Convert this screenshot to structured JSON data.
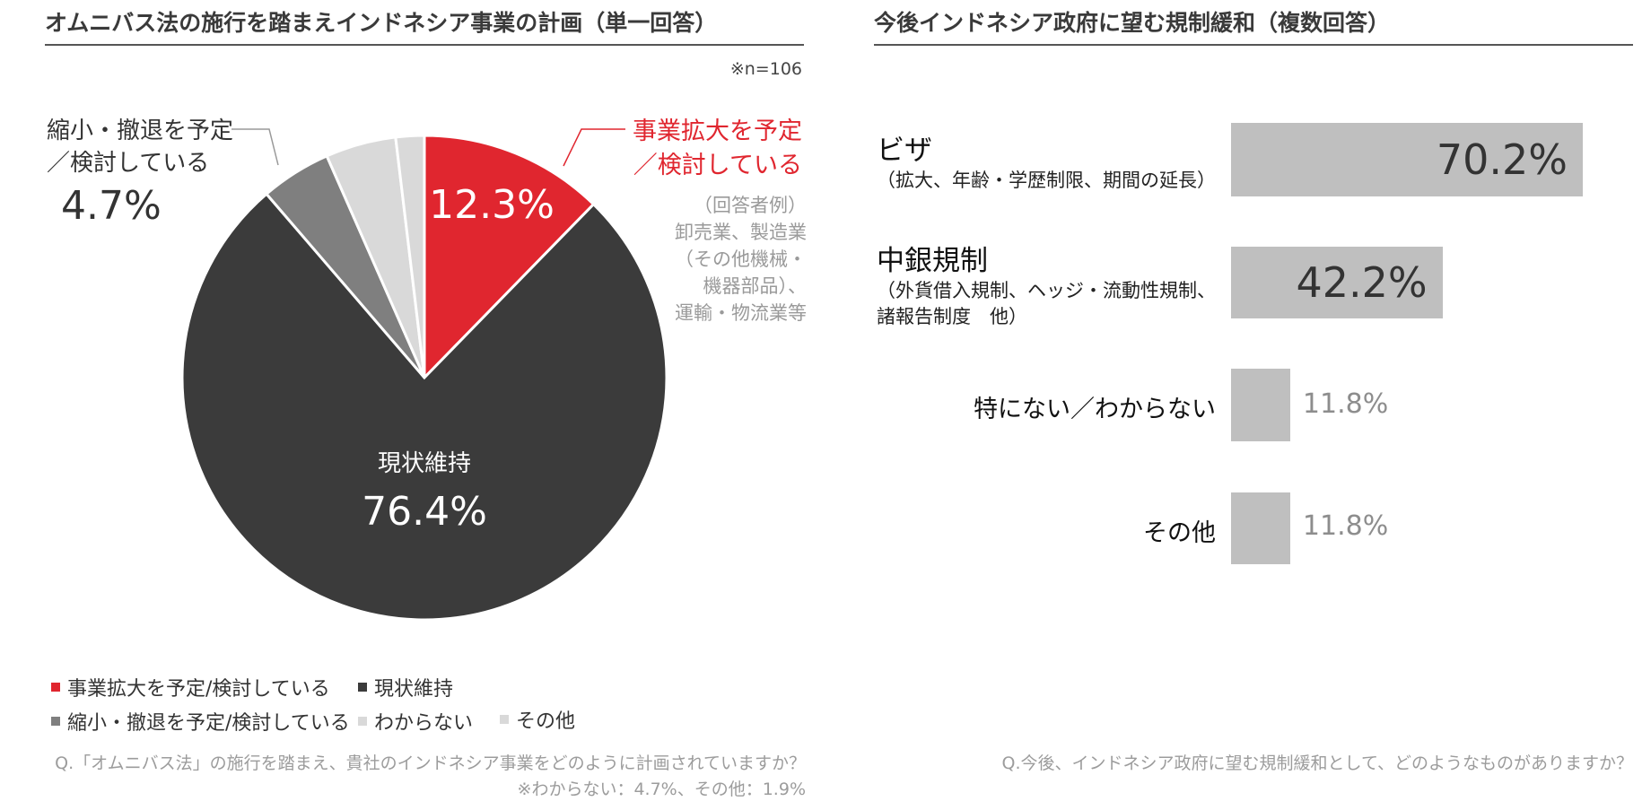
{
  "left": {
    "title": "オムニバス法の施行を踏まえインドネシア事業の計画（単一回答）",
    "sample_note": "※n=106",
    "callouts": {
      "shrink_line1": "縮小・撤退を予定",
      "shrink_line2": "／検討している",
      "shrink_pct": "4.7%",
      "expand_line1": "事業拡大を予定",
      "expand_line2": "／検討している",
      "expand_examples": [
        "（回答者例）",
        "卸売業、製造業",
        "（その他機械・",
        "機器部品）、",
        "運輸・物流業等"
      ],
      "expand_pct": "12.3%",
      "keep_label": "現状維持",
      "keep_pct": "76.4%"
    },
    "legend": [
      {
        "label": "事業拡大を予定/検討している",
        "color": "#e0262f"
      },
      {
        "label": "現状維持",
        "color": "#3b3b3b"
      },
      {
        "label": "縮小・撤退を予定/検討している",
        "color": "#7f7f7f"
      },
      {
        "label": "わからない",
        "color": "#d9d9d9"
      },
      {
        "label": "その他",
        "color": "#d9d9d9"
      }
    ],
    "question": "Q.「オムニバス法」の施行を踏まえ、貴社のインドネシア事業をどのように計画されていますか？",
    "footnote": "※わからない：4.7%、その他：1.9%"
  },
  "right": {
    "title": "今後インドネシア政府に望む規制緩和（複数回答）",
    "question": "Q.今後、インドネシア政府に望む規制緩和として、どのようなものがありますか？",
    "bars": [
      {
        "main": "ビザ",
        "sub": [
          "（拡大、年齢・学歴制限、期間の延長）"
        ],
        "value_label": "70.2%"
      },
      {
        "main": "中銀規制",
        "sub": [
          "（外貨借入規制、ヘッジ・流動性規制、",
          "諸報告制度　他）"
        ],
        "value_label": "42.2%"
      },
      {
        "main": "特にない／わからない",
        "sub": [],
        "value_label": "11.8%"
      },
      {
        "main": "その他",
        "sub": [],
        "value_label": "11.8%"
      }
    ]
  },
  "chart_data": [
    {
      "type": "pie",
      "title": "オムニバス法の施行を踏まえインドネシア事業の計画（単一回答）",
      "categories": [
        "事業拡大を予定/検討している",
        "現状維持",
        "縮小・撤退を予定/検討している",
        "わからない",
        "その他"
      ],
      "values": [
        12.3,
        76.4,
        4.7,
        4.7,
        1.9
      ],
      "colors": [
        "#e0262f",
        "#3b3b3b",
        "#7f7f7f",
        "#d9d9d9",
        "#d9d9d9"
      ],
      "start": "12 o'clock, clockwise",
      "legend": "bottom-left"
    },
    {
      "type": "bar",
      "orientation": "horizontal",
      "title": "今後インドネシア政府に望む規制緩和（複数回答）",
      "categories": [
        "ビザ",
        "中銀規制",
        "特にない／わからない",
        "その他"
      ],
      "values": [
        70.2,
        42.2,
        11.8,
        11.8
      ],
      "unit": "%",
      "color": "#bfbfbf",
      "grid": false
    }
  ]
}
